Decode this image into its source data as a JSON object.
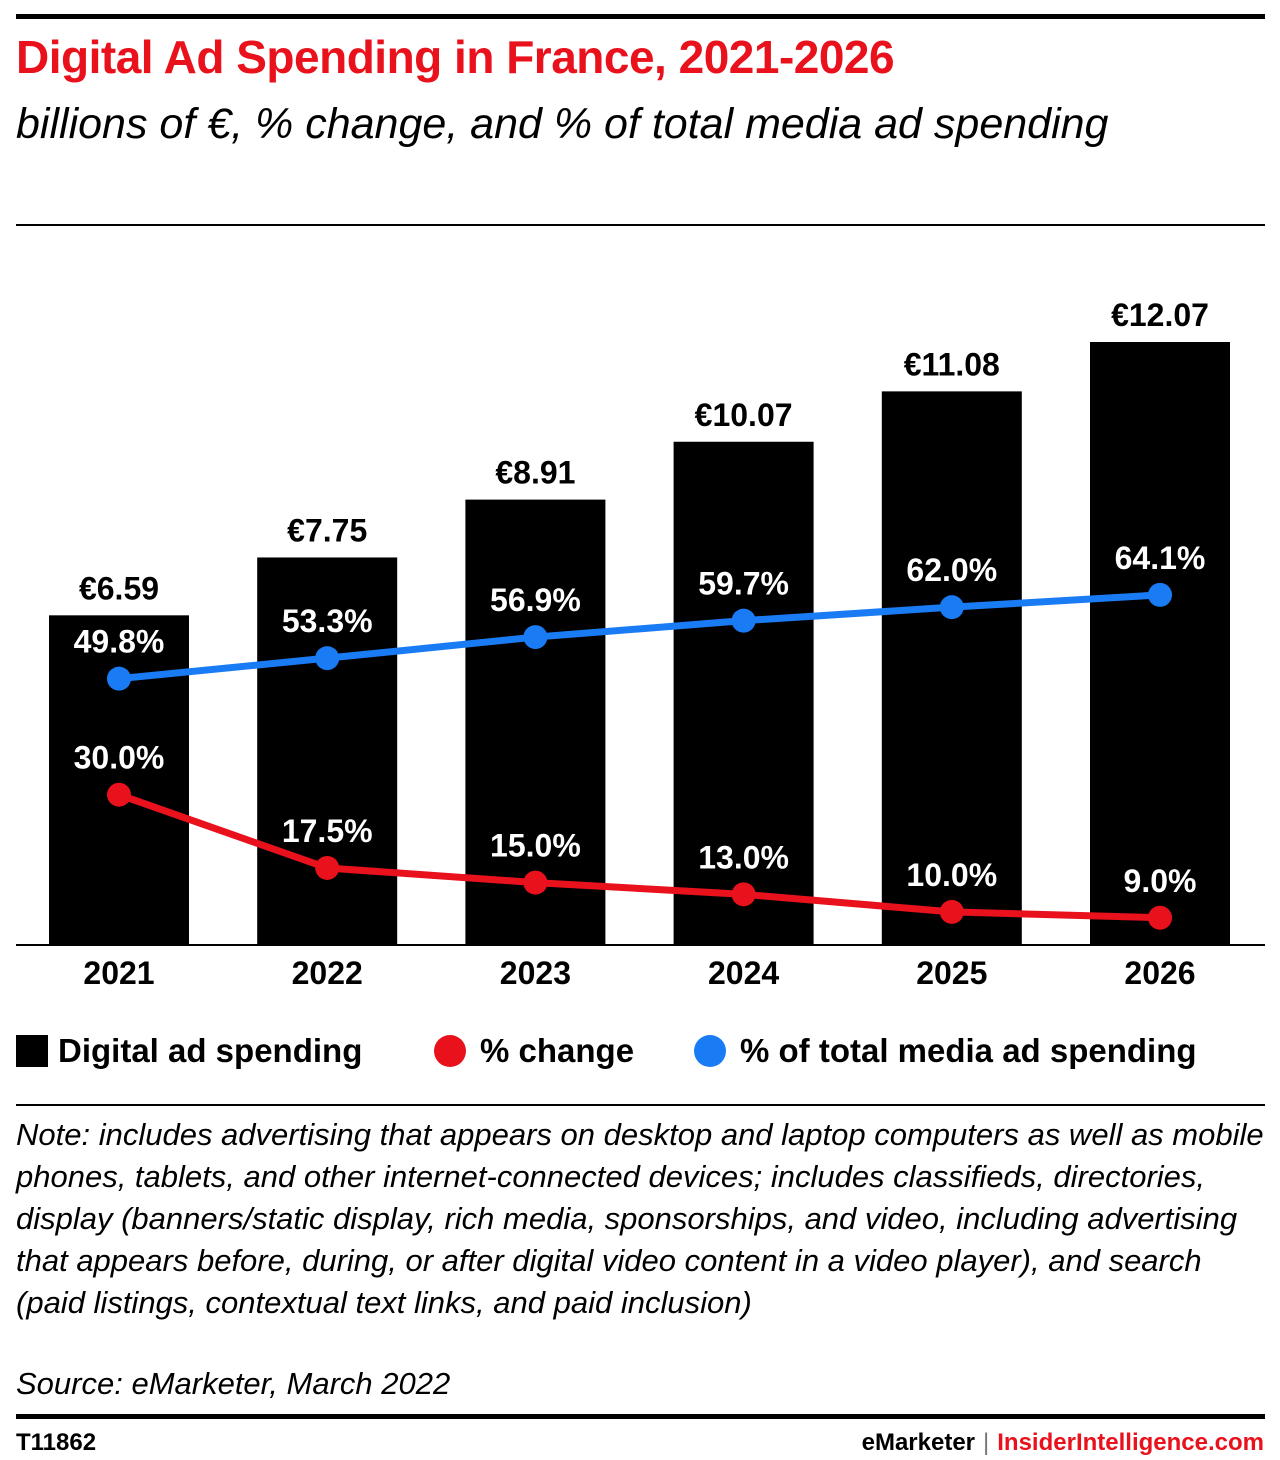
{
  "header": {
    "title": "Digital Ad Spending in France, 2021-2026",
    "subtitle": "billions of €, % change, and % of total media ad spending"
  },
  "chart_data": {
    "type": "bar",
    "categories": [
      "2021",
      "2022",
      "2023",
      "2024",
      "2025",
      "2026"
    ],
    "series": [
      {
        "name": "Digital ad spending",
        "type": "bar",
        "values": [
          6.59,
          7.75,
          8.91,
          10.07,
          11.08,
          12.07
        ],
        "labels": [
          "€6.59",
          "€7.75",
          "€8.91",
          "€10.07",
          "€11.08",
          "€12.07"
        ],
        "color": "#000000"
      },
      {
        "name": "% change",
        "type": "line",
        "values": [
          30.0,
          17.5,
          15.0,
          13.0,
          10.0,
          9.0
        ],
        "labels": [
          "30.0%",
          "17.5%",
          "15.0%",
          "13.0%",
          "10.0%",
          "9.0%"
        ],
        "color": "#e8111c"
      },
      {
        "name": "% of total media ad spending",
        "type": "line",
        "values": [
          49.8,
          53.3,
          56.9,
          59.7,
          62.0,
          64.1
        ],
        "labels": [
          "49.8%",
          "53.3%",
          "56.9%",
          "59.7%",
          "62.0%",
          "64.1%"
        ],
        "color": "#1a7cf5"
      }
    ],
    "legend": "bottom",
    "grid": false
  },
  "legend": {
    "items": [
      "Digital ad spending",
      "% change",
      "% of total media ad spending"
    ]
  },
  "footer": {
    "note": "Note: includes advertising that appears on desktop and laptop computers as well as mobile phones, tablets, and other internet-connected devices; includes classifieds, directories, display (banners/static display, rich media, sponsorships, and video, including advertising that appears before, during, or after digital video content in a video player), and search (paid listings, contextual text links, and paid inclusion)",
    "source": "Source: eMarketer, March 2022",
    "chart_id": "T11862",
    "brand": "eMarketer",
    "separator": "|",
    "site": "InsiderIntelligence.com"
  }
}
